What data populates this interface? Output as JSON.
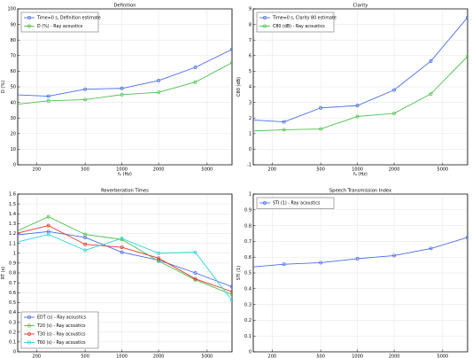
{
  "chart_data": [
    {
      "type": "line",
      "title": "Definition",
      "xlabel": "f₀ (Hz)",
      "ylabel": "D (%)",
      "xscale": "log",
      "xlim": [
        140,
        8000
      ],
      "ylim": [
        0,
        100
      ],
      "xticks": [
        200,
        500,
        1000,
        2000,
        5000
      ],
      "xtick_labels": [
        "200",
        "500",
        "1000",
        "2000",
        "5000"
      ],
      "yticks": [
        0,
        10,
        20,
        30,
        40,
        50,
        60,
        70,
        80,
        90,
        100
      ],
      "ytick_labels": [
        "0",
        "10",
        "20",
        "30",
        "40",
        "50",
        "60",
        "70",
        "80",
        "90",
        "100"
      ],
      "grid": true,
      "legend": "top-left",
      "x": [
        125,
        250,
        500,
        1000,
        2000,
        4000,
        8000
      ],
      "series": [
        {
          "name": "Time=0 s, Definition estimate",
          "color": "#4a6ce8",
          "values": [
            45,
            44,
            48.5,
            49,
            54,
            62.5,
            74
          ]
        },
        {
          "name": "D (%) - Ray acoustics",
          "color": "#4ec04e",
          "values": [
            38.5,
            41,
            41.8,
            45,
            46.5,
            53,
            65.5
          ]
        }
      ]
    },
    {
      "type": "line",
      "title": "Clarity",
      "xlabel": "f₀ (Hz)",
      "ylabel": "C80 (dB)",
      "xscale": "log",
      "xlim": [
        140,
        8000
      ],
      "ylim": [
        -1,
        9
      ],
      "xticks": [
        200,
        500,
        1000,
        2000,
        5000
      ],
      "xtick_labels": [
        "200",
        "500",
        "1000",
        "2000",
        "5000"
      ],
      "yticks": [
        -1,
        0,
        1,
        2,
        3,
        4,
        5,
        6,
        7,
        8,
        9
      ],
      "ytick_labels": [
        "-1",
        "0",
        "1",
        "2",
        "3",
        "4",
        "5",
        "6",
        "7",
        "8",
        "9"
      ],
      "grid": true,
      "legend": "top-left",
      "x": [
        125,
        250,
        500,
        1000,
        2000,
        4000,
        8000
      ],
      "series": [
        {
          "name": "Time=0 s, Clarity 80 estimate",
          "color": "#4a6ce8",
          "values": [
            1.9,
            1.75,
            2.65,
            2.8,
            3.8,
            5.65,
            8.45
          ]
        },
        {
          "name": "C80 (dB) - Ray acoustics",
          "color": "#4ec04e",
          "values": [
            1.15,
            1.25,
            1.3,
            2.1,
            2.3,
            3.55,
            5.95
          ]
        }
      ]
    },
    {
      "type": "line",
      "title": "Reverberation Times",
      "xlabel": "f₀ (Hz)",
      "ylabel": "RT (s)",
      "xscale": "log",
      "xlim": [
        140,
        8000
      ],
      "ylim": [
        0,
        1.6
      ],
      "xticks": [
        200,
        500,
        1000,
        2000,
        5000
      ],
      "xtick_labels": [
        "200",
        "500",
        "1000",
        "2000",
        "5000"
      ],
      "yticks": [
        0,
        0.1,
        0.2,
        0.3,
        0.4,
        0.5,
        0.6,
        0.7,
        0.8,
        0.9,
        1,
        1.1,
        1.2,
        1.3,
        1.4,
        1.5,
        1.6
      ],
      "ytick_labels": [
        "0",
        "0.1",
        "0.2",
        "0.3",
        "0.4",
        "0.5",
        "0.6",
        "0.7",
        "0.8",
        "0.9",
        "1",
        "1.1",
        "1.2",
        "1.3",
        "1.4",
        "1.5",
        "1.6"
      ],
      "grid": true,
      "legend": "bottom-left",
      "x": [
        125,
        250,
        500,
        1000,
        2000,
        4000,
        8000
      ],
      "series": [
        {
          "name": "EDT (s) - Ray acoustics",
          "color": "#4a6ce8",
          "values": [
            1.18,
            1.22,
            1.16,
            1.01,
            0.93,
            0.8,
            0.66
          ]
        },
        {
          "name": "T20 (s) - Ray acoustics",
          "color": "#4ec04e",
          "values": [
            1.2,
            1.37,
            1.19,
            1.14,
            0.92,
            0.73,
            0.58
          ]
        },
        {
          "name": "T30 (s) - Ray acoustics",
          "color": "#e03a2a",
          "values": [
            1.19,
            1.28,
            1.09,
            1.06,
            0.95,
            0.74,
            0.61
          ]
        },
        {
          "name": "T60 (s) - Ray acoustics",
          "color": "#2ed4dc",
          "values": [
            1.1,
            1.19,
            1.03,
            1.15,
            1.0,
            1.01,
            0.52
          ]
        }
      ]
    },
    {
      "type": "line",
      "title": "Speech Transmission Index",
      "xlabel": "f₀ (Hz)",
      "ylabel": "STI (1)",
      "xscale": "log",
      "xlim": [
        140,
        8000
      ],
      "ylim": [
        0,
        1
      ],
      "xticks": [
        200,
        500,
        1000,
        2000,
        5000
      ],
      "xtick_labels": [
        "200",
        "500",
        "1000",
        "2000",
        "5000"
      ],
      "yticks": [
        0,
        0.1,
        0.2,
        0.3,
        0.4,
        0.5,
        0.6,
        0.7,
        0.8,
        0.9,
        1
      ],
      "ytick_labels": [
        "0",
        "0.1",
        "0.2",
        "0.3",
        "0.4",
        "0.5",
        "0.6",
        "0.7",
        "0.8",
        "0.9",
        "1"
      ],
      "grid": true,
      "legend": "top-left",
      "x": [
        125,
        250,
        500,
        1000,
        2000,
        4000,
        8000
      ],
      "series": [
        {
          "name": "STI (1) - Ray acoustics",
          "color": "#4a6ce8",
          "values": [
            0.535,
            0.555,
            0.565,
            0.59,
            0.61,
            0.655,
            0.725
          ]
        }
      ]
    }
  ]
}
